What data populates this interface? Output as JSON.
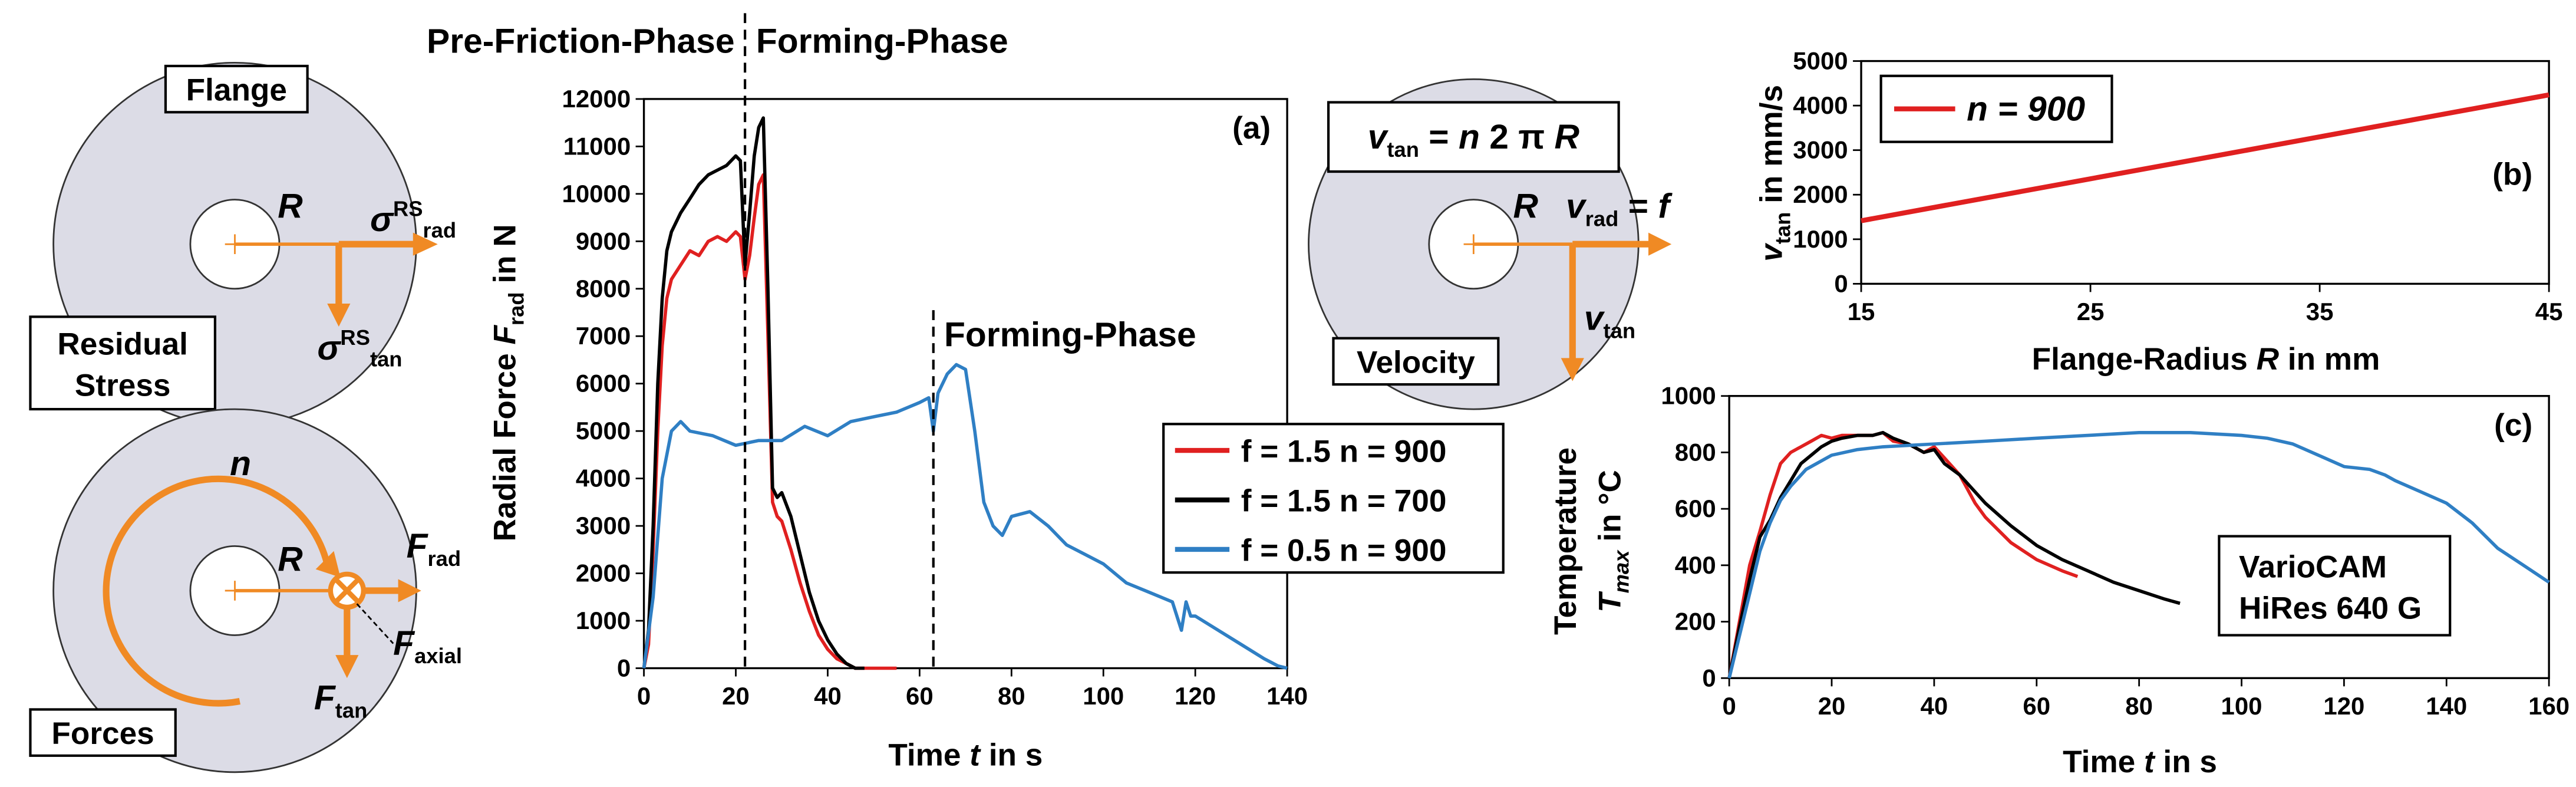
{
  "diagrams": {
    "stress": {
      "title": "Flange",
      "radius": "R",
      "radial": [
        "σ",
        "RS",
        "rad"
      ],
      "tangential": [
        "σ",
        "RS",
        "tan"
      ],
      "caption": [
        "Residual",
        "Stress"
      ]
    },
    "forces": {
      "speed": "n",
      "radius": "R",
      "radial": [
        "F",
        "rad"
      ],
      "axial": [
        "F",
        "axial"
      ],
      "tangential": [
        "F",
        "tan"
      ],
      "caption": "Forces"
    },
    "velocity": {
      "formula": [
        "v",
        "tan",
        " = ",
        "n",
        " 2 π ",
        "R"
      ],
      "radius": "R",
      "radial": [
        "v",
        "rad",
        " = ",
        "f"
      ],
      "tangential": [
        "v",
        "tan"
      ],
      "caption": "Velocity"
    }
  },
  "chart_data": [
    {
      "type": "line",
      "panel": "(a)",
      "xlabel": [
        "Time ",
        "t",
        " in s"
      ],
      "ylabel": [
        "Radial Force ",
        "F",
        "rad",
        " in N"
      ],
      "xlim": [
        0,
        140
      ],
      "xticks": [
        0,
        20,
        40,
        60,
        80,
        100,
        120,
        140
      ],
      "ylim": [
        0,
        12000
      ],
      "yticks": [
        0,
        1000,
        2000,
        3000,
        4000,
        5000,
        6000,
        7000,
        8000,
        9000,
        10000,
        11000,
        12000
      ],
      "phase_lines": [
        22,
        63
      ],
      "annotations": [
        "Pre-Friction-Phase",
        "Forming-Phase",
        "Forming-Phase"
      ],
      "legend": "right",
      "series": [
        {
          "name": "f = 1.5 n = 900",
          "color": "#e02020",
          "x": [
            0,
            1,
            2,
            3,
            4,
            5,
            6,
            8,
            10,
            12,
            14,
            16,
            18,
            20,
            21,
            22,
            23,
            24,
            25,
            26,
            27,
            28,
            29,
            30,
            32,
            34,
            36,
            38,
            40,
            42,
            44,
            46,
            50,
            55
          ],
          "values": [
            0,
            500,
            2500,
            5000,
            6800,
            7800,
            8200,
            8500,
            8800,
            8700,
            9000,
            9100,
            9000,
            9200,
            9100,
            8200,
            8700,
            9500,
            10200,
            10400,
            7000,
            3500,
            3200,
            3100,
            2500,
            1800,
            1200,
            700,
            400,
            200,
            100,
            0,
            0,
            0
          ]
        },
        {
          "name": "f = 1.5 n = 700",
          "color": "#000000",
          "x": [
            0,
            1,
            2,
            3,
            4,
            5,
            6,
            8,
            10,
            12,
            14,
            16,
            18,
            20,
            21,
            22,
            23,
            24,
            25,
            26,
            27,
            28,
            29,
            30,
            32,
            34,
            36,
            38,
            40,
            42,
            44,
            46,
            48
          ],
          "values": [
            0,
            800,
            3000,
            6000,
            7800,
            8800,
            9200,
            9600,
            9900,
            10200,
            10400,
            10500,
            10600,
            10800,
            10700,
            8500,
            9600,
            10800,
            11400,
            11600,
            8000,
            3800,
            3600,
            3700,
            3200,
            2400,
            1600,
            1000,
            600,
            300,
            100,
            0,
            0
          ]
        },
        {
          "name": "f = 0.5 n = 900",
          "color": "#2f7fc4",
          "x": [
            0,
            2,
            4,
            6,
            8,
            10,
            15,
            20,
            25,
            30,
            35,
            40,
            45,
            50,
            55,
            60,
            62,
            63,
            64,
            66,
            68,
            70,
            72,
            74,
            76,
            78,
            80,
            84,
            88,
            92,
            96,
            100,
            105,
            110,
            115,
            117,
            118,
            119,
            120,
            125,
            130,
            135,
            138,
            140
          ],
          "values": [
            0,
            1500,
            4000,
            5000,
            5200,
            5000,
            4900,
            4700,
            4800,
            4800,
            5100,
            4900,
            5200,
            5300,
            5400,
            5600,
            5700,
            5000,
            5800,
            6200,
            6400,
            6300,
            5000,
            3500,
            3000,
            2800,
            3200,
            3300,
            3000,
            2600,
            2400,
            2200,
            1800,
            1600,
            1400,
            800,
            1400,
            1100,
            1100,
            800,
            500,
            200,
            50,
            0
          ]
        }
      ]
    },
    {
      "type": "line",
      "panel": "(b)",
      "xlabel": [
        "Flange-Radius ",
        "R",
        " in mm"
      ],
      "ylabel": [
        "v",
        "tan",
        " in mm/s"
      ],
      "xlim": [
        15,
        45
      ],
      "xticks": [
        15,
        25,
        35,
        45
      ],
      "ylim": [
        0,
        5000
      ],
      "yticks": [
        0,
        1000,
        2000,
        3000,
        4000,
        5000
      ],
      "legend": "upper left",
      "series": [
        {
          "name": "n = 900",
          "color": "#e02020",
          "x": [
            15,
            45
          ],
          "values": [
            1414,
            4241
          ]
        }
      ]
    },
    {
      "type": "line",
      "panel": "(c)",
      "xlabel": [
        "Time ",
        "t",
        " in s"
      ],
      "ylabel": [
        "Temperature",
        "T",
        "max",
        " in °C"
      ],
      "xlim": [
        0,
        160
      ],
      "xticks": [
        0,
        20,
        40,
        60,
        80,
        100,
        120,
        140,
        160
      ],
      "ylim": [
        0,
        1000
      ],
      "yticks": [
        0,
        200,
        400,
        600,
        800,
        1000
      ],
      "annotations": [
        "VarioCAM",
        "HiRes 640 G"
      ],
      "series": [
        {
          "color": "#e02020",
          "x": [
            0,
            2,
            4,
            6,
            8,
            10,
            12,
            14,
            16,
            18,
            20,
            22,
            25,
            28,
            30,
            32,
            35,
            38,
            40,
            42,
            45,
            48,
            50,
            55,
            60,
            65,
            68
          ],
          "values": [
            0,
            200,
            400,
            520,
            650,
            760,
            800,
            820,
            840,
            860,
            850,
            860,
            860,
            860,
            870,
            840,
            830,
            800,
            820,
            780,
            720,
            620,
            570,
            480,
            420,
            380,
            360
          ]
        },
        {
          "color": "#000000",
          "x": [
            0,
            2,
            4,
            6,
            8,
            10,
            12,
            14,
            16,
            18,
            20,
            22,
            25,
            28,
            30,
            32,
            35,
            38,
            40,
            42,
            45,
            50,
            55,
            60,
            65,
            70,
            75,
            80,
            85,
            88
          ],
          "values": [
            0,
            180,
            350,
            500,
            560,
            640,
            700,
            760,
            790,
            820,
            840,
            850,
            860,
            860,
            870,
            850,
            830,
            800,
            810,
            760,
            720,
            620,
            540,
            470,
            420,
            380,
            340,
            310,
            280,
            265
          ]
        },
        {
          "color": "#2f7fc4",
          "x": [
            0,
            2,
            4,
            6,
            8,
            10,
            12,
            15,
            20,
            25,
            30,
            40,
            50,
            60,
            70,
            80,
            90,
            100,
            105,
            110,
            115,
            120,
            125,
            128,
            130,
            135,
            140,
            145,
            150,
            155,
            160
          ],
          "values": [
            0,
            150,
            300,
            450,
            550,
            630,
            680,
            740,
            790,
            810,
            820,
            830,
            840,
            850,
            860,
            870,
            870,
            860,
            850,
            830,
            790,
            750,
            740,
            720,
            700,
            660,
            620,
            550,
            460,
            400,
            340
          ]
        }
      ]
    }
  ]
}
